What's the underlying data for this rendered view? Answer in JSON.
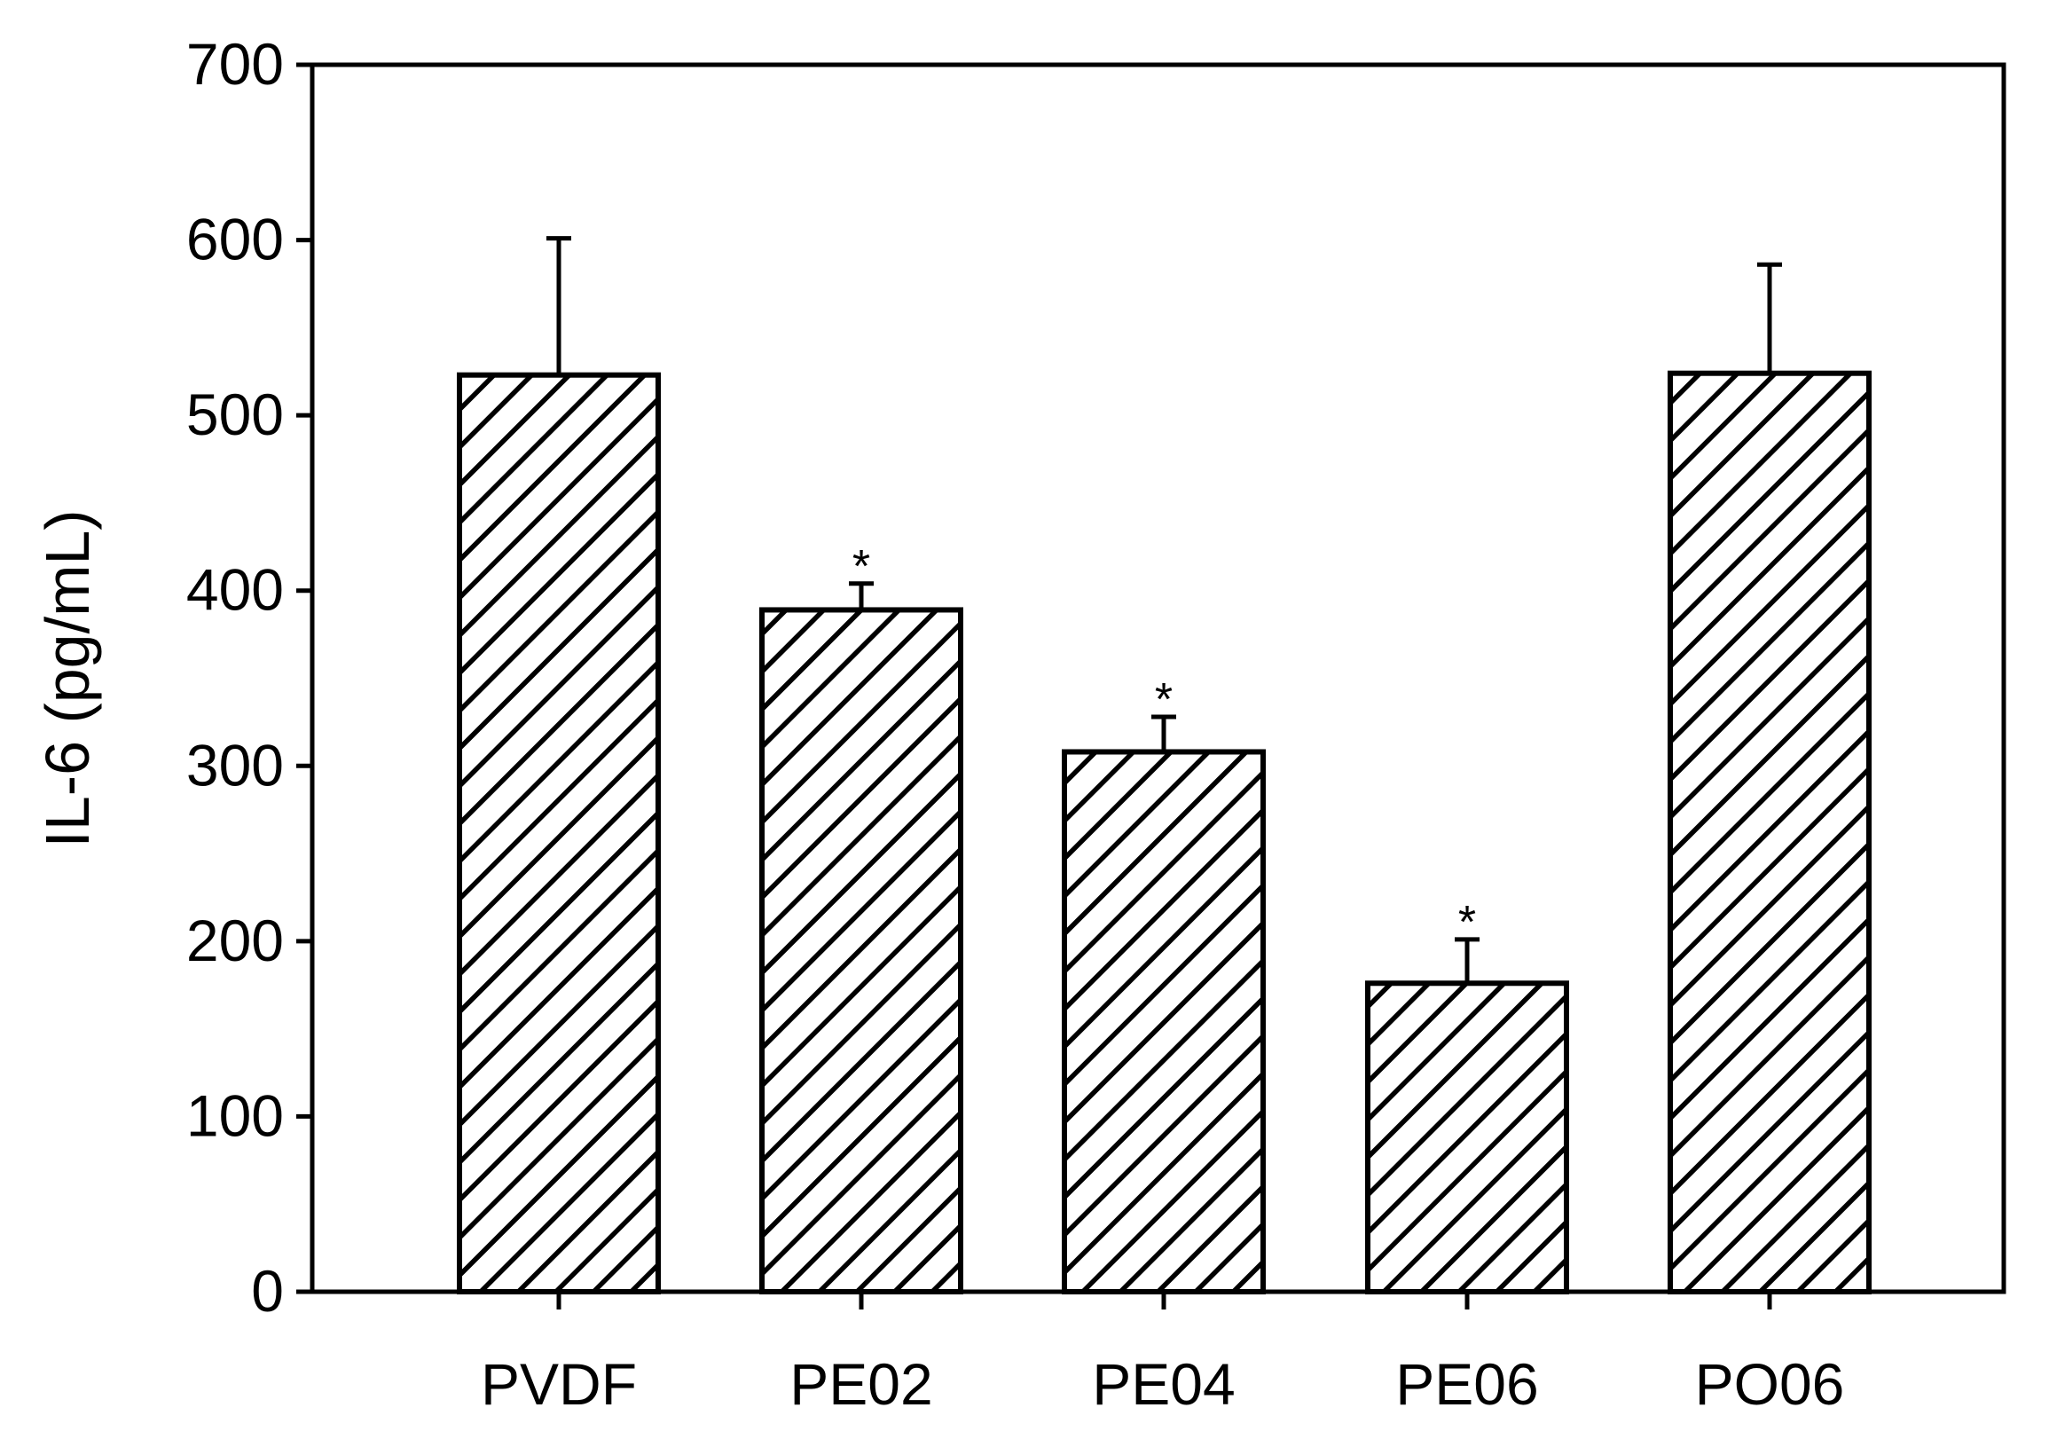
{
  "chart_data": {
    "type": "bar",
    "categories": [
      "PVDF",
      "PE02",
      "PE04",
      "PE06",
      "PO06"
    ],
    "series": [
      {
        "values": [
          523,
          389,
          308,
          176,
          524
        ],
        "error_upper": [
          78,
          15,
          20,
          25,
          62
        ],
        "significance": [
          "",
          "*",
          "*",
          "*",
          ""
        ]
      }
    ],
    "xlabel": "",
    "ylabel": "IL-6 (pg/mL)",
    "ylim": [
      0,
      700
    ],
    "yticks": [
      0,
      100,
      200,
      300,
      400,
      500,
      600,
      700
    ],
    "bar_fill": "diagonal-hatch",
    "colors": {
      "stroke": "#000000",
      "background": "#ffffff"
    },
    "grid": false
  }
}
